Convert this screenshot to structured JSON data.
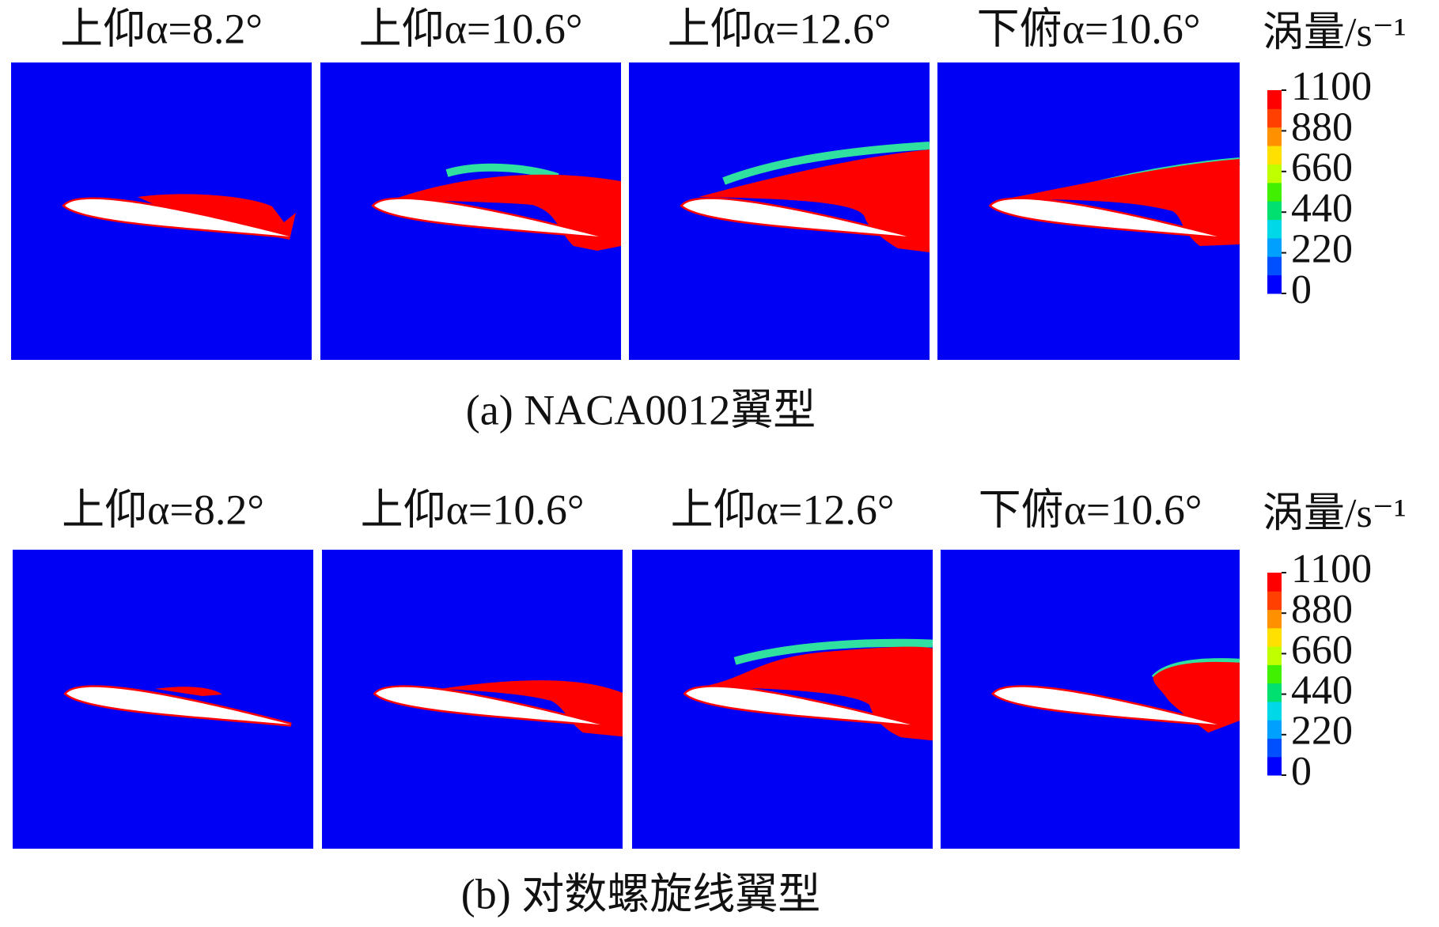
{
  "rows": [
    {
      "panels": [
        {
          "title": "上仰α=8.2°"
        },
        {
          "title": "上仰α=10.6°"
        },
        {
          "title": "上仰α=12.6°"
        },
        {
          "title": "下俯α=10.6°"
        }
      ],
      "colorbar": {
        "title": "涡量/s⁻¹",
        "range": [
          0,
          1100
        ],
        "ticks": [
          0,
          220,
          440,
          660,
          880,
          1100
        ]
      },
      "caption": "(a) NACA0012翼型"
    },
    {
      "panels": [
        {
          "title": "上仰α=8.2°"
        },
        {
          "title": "上仰α=10.6°"
        },
        {
          "title": "上仰α=12.6°"
        },
        {
          "title": "下俯α=10.6°"
        }
      ],
      "colorbar": {
        "title": "涡量/s⁻¹",
        "range": [
          0,
          1100
        ],
        "ticks": [
          0,
          220,
          440,
          660,
          880,
          1100
        ]
      },
      "caption": "(b) 对数螺旋线翼型"
    }
  ]
}
